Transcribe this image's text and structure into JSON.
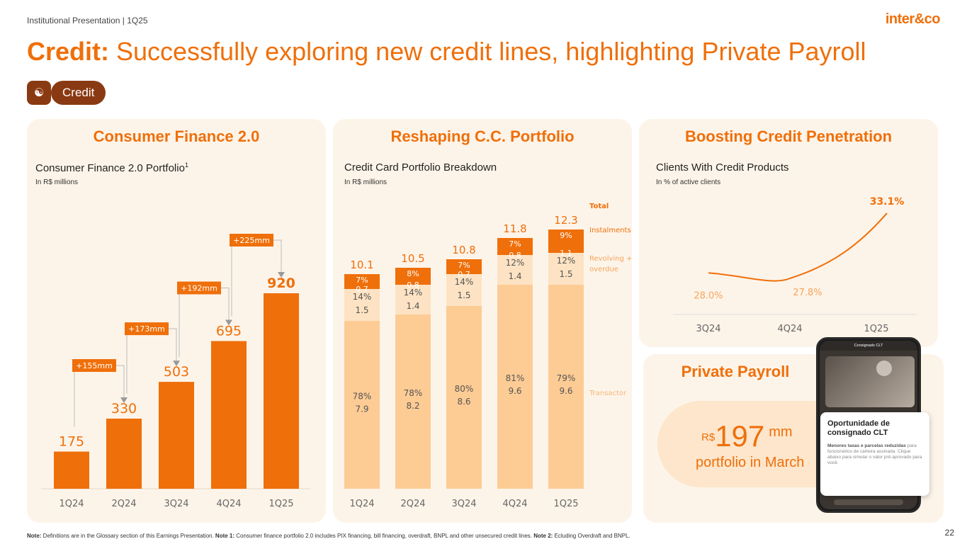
{
  "header": {
    "subtitle": "Institutional Presentation | 1Q25",
    "logo": "inter&co",
    "title_bold": "Credit:",
    "title_rest": " Successfully exploring new credit lines, highlighting Private Payroll",
    "badge_label": "Credit",
    "badge_icon": "hand-coin-icon"
  },
  "consumer_finance": {
    "panel_title": "Consumer Finance 2.0",
    "chart_title": "Consumer Finance 2.0 Portfolio",
    "chart_title_sup": "1",
    "unit": "In R$ millions",
    "chart_data": {
      "type": "bar",
      "categories": [
        "1Q24",
        "2Q24",
        "3Q24",
        "4Q24",
        "1Q25"
      ],
      "values": [
        175,
        330,
        503,
        695,
        920
      ],
      "value_labels": [
        "175",
        "330",
        "503",
        "695",
        "920"
      ],
      "increments": [
        "+155mm",
        "+173mm",
        "+192mm",
        "+225mm"
      ],
      "ylim": [
        0,
        1000
      ]
    }
  },
  "credit_card": {
    "panel_title": "Reshaping C.C. Portfolio",
    "chart_title": "Credit Card Portfolio Breakdown",
    "unit": "In R$ millions",
    "chart_data": {
      "type": "bar",
      "stacked": true,
      "categories": [
        "1Q24",
        "2Q24",
        "3Q24",
        "4Q24",
        "1Q25"
      ],
      "totals": [
        "10.1",
        "10.5",
        "10.8",
        "11.8",
        "12.3"
      ],
      "series": [
        {
          "name": "Transactor",
          "values": [
            7.9,
            8.2,
            8.6,
            9.6,
            9.6
          ],
          "value_labels": [
            "7.9",
            "8.2",
            "8.6",
            "9.6",
            "9.6"
          ],
          "pct": [
            "78%",
            "78%",
            "80%",
            "81%",
            "79%"
          ]
        },
        {
          "name": "Revolving + overdue",
          "values": [
            1.5,
            1.4,
            1.5,
            1.4,
            1.5
          ],
          "value_labels": [
            "1.5",
            "1.4",
            "1.5",
            "1.4",
            "1.5"
          ],
          "pct": [
            "14%",
            "14%",
            "14%",
            "12%",
            "12%"
          ]
        },
        {
          "name": "Instalments",
          "values": [
            0.7,
            0.8,
            0.7,
            0.8,
            1.1
          ],
          "value_labels": [
            "0.7",
            "0.8",
            "0.7",
            "0.8",
            "1.1"
          ],
          "pct": [
            "7%",
            "8%",
            "7%",
            "7%",
            "9%"
          ]
        }
      ],
      "legend": {
        "total": "Total",
        "instalments": "Instalments",
        "revolving_line1": "Revolving +",
        "revolving_line2": "overdue",
        "transactor": "Transactor"
      }
    }
  },
  "penetration": {
    "panel_title": "Boosting Credit Penetration",
    "chart_title": "Clients With Credit Products",
    "unit": "In % of active clients",
    "chart_data": {
      "type": "line",
      "categories": [
        "3Q24",
        "4Q24",
        "1Q25"
      ],
      "values": [
        28.0,
        27.8,
        33.1
      ],
      "value_labels": [
        "28.0%",
        "27.8%",
        "33.1%"
      ]
    }
  },
  "private_payroll": {
    "panel_title": "Private Payroll",
    "currency": "R$",
    "amount": "197",
    "suffix": "mm",
    "caption": "portfolio in March",
    "phone": {
      "screen_title": "Consignado CLT",
      "card_title": "Oportunidade de consignado CLT",
      "card_text_bold": "Menores taxas e parcelas reduzidas",
      "card_text": " para funcionários de carteira assinada. Clique abaixo para simular o valor pré-aprovado para você."
    }
  },
  "footer": {
    "note_label": "Note:",
    "note_text": " Definitions are in the Glossary section of this Earnings Presentation. ",
    "note1_label": "Note 1:",
    "note1_text": " Consumer finance portfolio 2.0 includes PIX financing, bill financing, overdraft, BNPL and other unsecured credit lines. ",
    "note2_label": "Note 2:",
    "note2_text": " Ecluding Overdraft and BNPL.",
    "page_number": "22"
  },
  "colors": {
    "orange": "#ef6f0a",
    "light_orange": "#fdcb94",
    "panel_bg": "#fdf4e9",
    "brown": "#8a3a12"
  }
}
